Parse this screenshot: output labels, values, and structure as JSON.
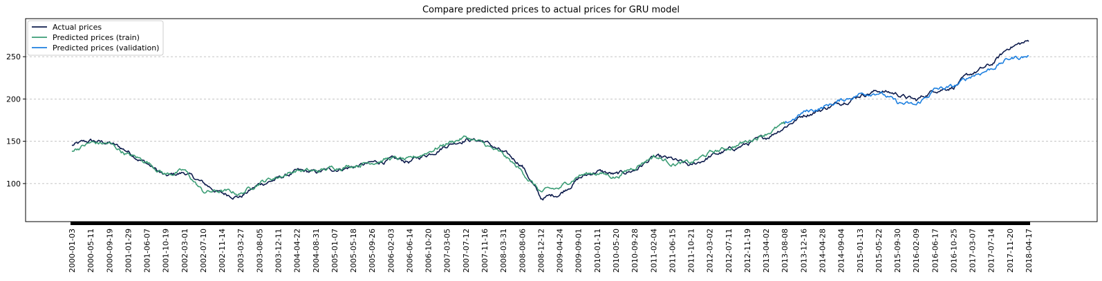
{
  "chart_data": {
    "type": "line",
    "title": "Compare predicted prices to actual prices for GRU model",
    "xlabel": "",
    "ylabel": "",
    "ylim": [
      55,
      295
    ],
    "yticks": [
      100,
      150,
      200,
      250
    ],
    "grid": "y-dashed",
    "legend_position": "top-left",
    "x_tick_labels": [
      "2000-01-03",
      "2000-05-11",
      "2000-09-19",
      "2001-01-29",
      "2001-06-07",
      "2001-10-19",
      "2002-03-01",
      "2002-07-10",
      "2002-11-14",
      "2003-03-27",
      "2003-08-05",
      "2003-12-11",
      "2004-04-22",
      "2004-08-31",
      "2005-01-07",
      "2005-05-18",
      "2005-09-26",
      "2006-02-03",
      "2006-06-14",
      "2006-10-20",
      "2007-03-05",
      "2007-07-12",
      "2007-11-16",
      "2008-03-31",
      "2008-08-06",
      "2008-12-12",
      "2009-04-24",
      "2009-09-01",
      "2010-01-11",
      "2010-05-20",
      "2010-09-28",
      "2011-02-04",
      "2011-06-15",
      "2011-10-21",
      "2012-03-02",
      "2012-07-11",
      "2012-11-19",
      "2013-04-02",
      "2013-08-08",
      "2013-12-16",
      "2014-04-28",
      "2014-09-04",
      "2015-01-13",
      "2015-05-22",
      "2015-09-30",
      "2016-02-09",
      "2016-06-17",
      "2016-10-25",
      "2017-03-07",
      "2017-07-14",
      "2017-11-20",
      "2018-04-17"
    ],
    "series": [
      {
        "name": "Actual prices",
        "color": "#0d1b4c",
        "x": [
          0,
          1,
          2,
          3,
          4,
          5,
          6,
          7,
          8,
          9,
          10,
          11,
          12,
          13,
          14,
          15,
          16,
          17,
          18,
          19,
          20,
          21,
          22,
          23,
          24,
          25,
          26,
          27,
          28,
          29,
          30,
          31,
          32,
          33,
          34,
          35,
          36,
          37,
          38,
          39,
          40,
          41,
          42,
          43,
          44,
          45,
          46,
          47,
          48,
          49,
          50,
          51
        ],
        "values": [
          145,
          150,
          148,
          138,
          124,
          108,
          113,
          100,
          88,
          85,
          99,
          106,
          114,
          113,
          117,
          120,
          124,
          128,
          126,
          135,
          146,
          153,
          150,
          136,
          122,
          82,
          88,
          106,
          115,
          110,
          116,
          131,
          128,
          120,
          132,
          139,
          147,
          154,
          168,
          181,
          188,
          196,
          205,
          210,
          206,
          198,
          211,
          215,
          230,
          240,
          262,
          268
        ]
      },
      {
        "name": "Predicted prices (train)",
        "color": "#3a9c74",
        "x": [
          0,
          1,
          2,
          3,
          4,
          5,
          6,
          7,
          8,
          9,
          10,
          11,
          12,
          13,
          14,
          15,
          16,
          17,
          18,
          19,
          20,
          21,
          22,
          23,
          24,
          25,
          26,
          27,
          28,
          29,
          30,
          31,
          32,
          33,
          34,
          35,
          36,
          37,
          38
        ],
        "values": [
          140,
          148,
          147,
          134,
          126,
          111,
          115,
          90,
          91,
          88,
          102,
          108,
          116,
          114,
          119,
          122,
          126,
          130,
          127,
          138,
          148,
          155,
          146,
          133,
          114,
          90,
          94,
          110,
          113,
          108,
          120,
          133,
          124,
          124,
          136,
          142,
          150,
          160,
          170
        ]
      },
      {
        "name": "Predicted prices (validation)",
        "color": "#1c7fdf",
        "x": [
          38,
          39,
          40,
          41,
          42,
          43,
          44,
          45,
          46,
          47,
          48,
          49,
          50,
          51
        ],
        "values": [
          170,
          184,
          190,
          198,
          206,
          209,
          195,
          192,
          211,
          214,
          228,
          236,
          248,
          251
        ]
      }
    ]
  }
}
